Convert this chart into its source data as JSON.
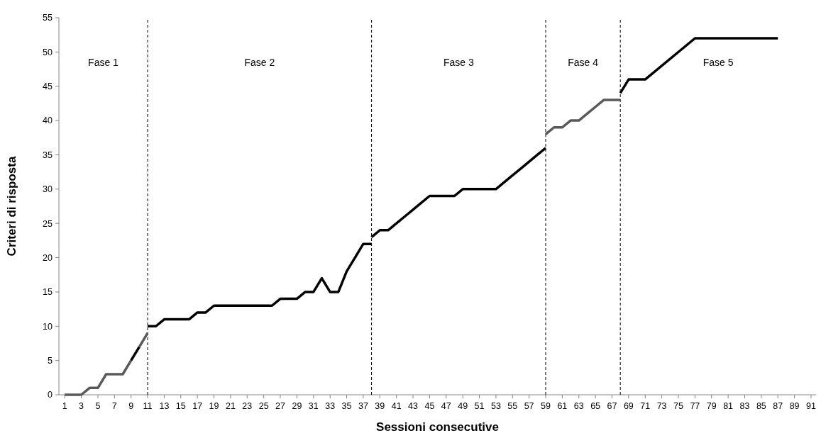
{
  "chart_data": {
    "type": "line",
    "xlabel": "Sessioni consecutive",
    "ylabel": "Criteri di risposta",
    "xlim": [
      0.3,
      91.6
    ],
    "xticks": [
      1,
      3,
      5,
      7,
      9,
      11,
      13,
      15,
      17,
      19,
      21,
      23,
      25,
      27,
      29,
      31,
      33,
      35,
      37,
      39,
      41,
      43,
      45,
      47,
      49,
      51,
      53,
      55,
      57,
      59,
      61,
      63,
      65,
      67,
      69,
      71,
      73,
      75,
      77,
      79,
      81,
      83,
      85,
      87,
      89,
      91
    ],
    "ylim": [
      0,
      55
    ],
    "yticks": [
      0,
      5,
      10,
      15,
      20,
      25,
      30,
      35,
      40,
      45,
      50,
      55
    ],
    "grid": false,
    "marker": "none",
    "line_style": "solid",
    "series": [
      {
        "color": "#595959",
        "x": [
          1,
          2,
          3,
          4,
          5,
          6,
          7,
          8,
          9
        ],
        "values": [
          0,
          0,
          0,
          1,
          1,
          3,
          3,
          3,
          5
        ]
      },
      {
        "color": "#000000",
        "x": [
          9,
          10
        ],
        "values": [
          5,
          7
        ]
      },
      {
        "color": "#595959",
        "x": [
          10,
          11
        ],
        "values": [
          7,
          9
        ]
      },
      {
        "color": "#000000",
        "x": [
          11,
          12,
          13,
          14,
          15,
          16,
          17,
          18,
          19,
          20,
          21,
          22,
          23,
          24,
          25,
          26,
          27,
          28,
          29,
          30,
          31,
          32,
          33,
          34,
          35,
          36,
          37,
          38
        ],
        "values": [
          10,
          10,
          11,
          11,
          11,
          11,
          12,
          12,
          13,
          13,
          13,
          13,
          13,
          13,
          13,
          13,
          14,
          14,
          14,
          15,
          15,
          17,
          15,
          15,
          18,
          20,
          22,
          22
        ]
      },
      {
        "color": "#000000",
        "x": [
          38,
          39,
          40,
          41,
          42,
          43,
          44,
          45,
          46,
          47,
          48,
          49,
          50,
          51,
          52,
          53,
          54,
          55,
          56,
          57,
          58,
          59
        ],
        "values": [
          23,
          24,
          24,
          25,
          26,
          27,
          28,
          29,
          29,
          29,
          29,
          30,
          30,
          30,
          30,
          30,
          31,
          32,
          33,
          34,
          35,
          36
        ]
      },
      {
        "color": "#595959",
        "x": [
          59,
          60,
          61,
          62,
          63,
          64,
          65,
          66,
          67,
          68
        ],
        "values": [
          38,
          39,
          39,
          40,
          40,
          41,
          42,
          43,
          43,
          43
        ]
      },
      {
        "color": "#000000",
        "x": [
          68,
          69,
          70,
          71,
          77,
          87
        ],
        "values": [
          44,
          46,
          46,
          46,
          52,
          52
        ]
      }
    ],
    "ref_lines": [
      {
        "axis": "x",
        "value": 11,
        "color": "#000000",
        "line_style": "dashed"
      },
      {
        "axis": "x",
        "value": 38,
        "color": "#000000",
        "line_style": "dashed"
      },
      {
        "axis": "x",
        "value": 59,
        "color": "#000000",
        "line_style": "dashed"
      },
      {
        "axis": "x",
        "value": 68,
        "color": "#000000",
        "line_style": "dashed"
      }
    ],
    "annotations": [
      "Fase 1",
      "Fase 2",
      "Fase 3",
      "Fase 4",
      "Fase 5"
    ]
  }
}
